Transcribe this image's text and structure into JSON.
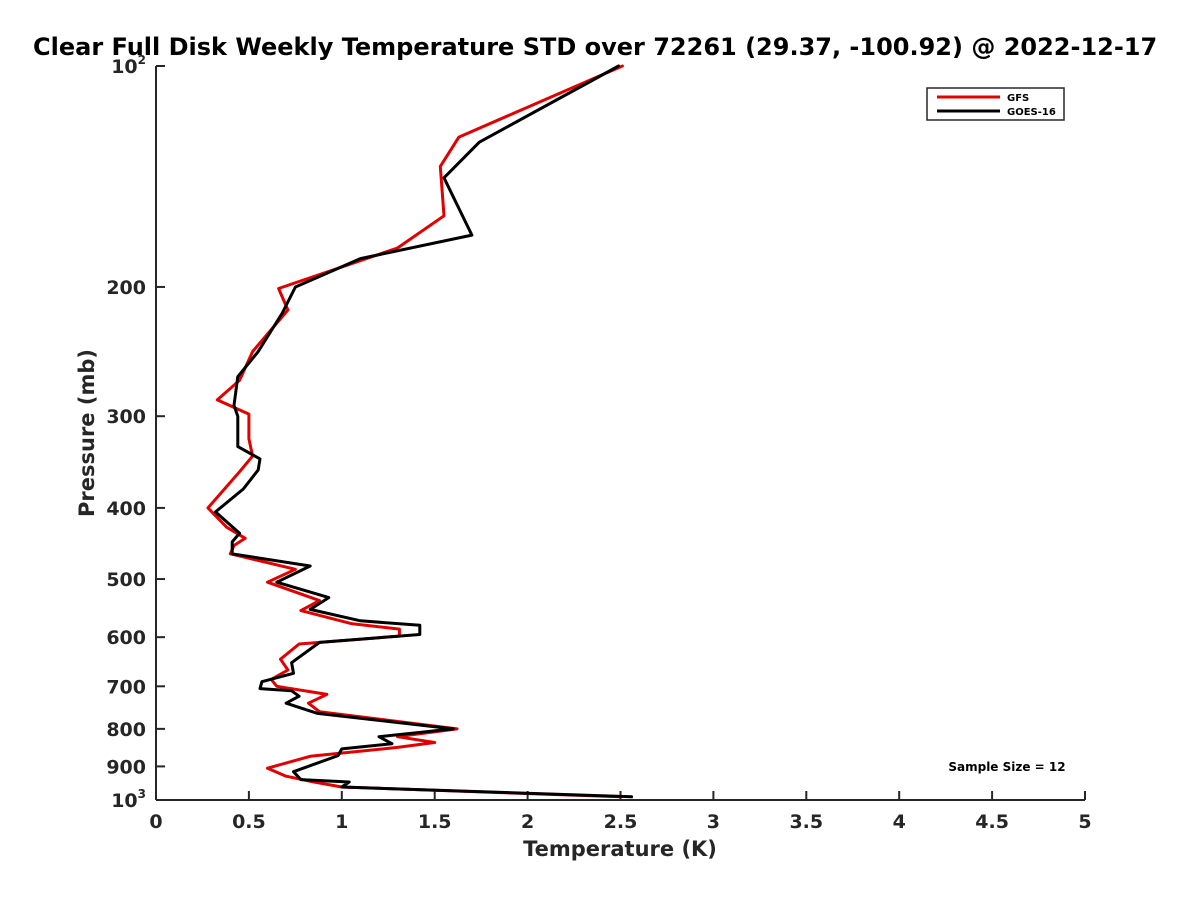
{
  "chart_data": {
    "type": "line",
    "title": "Clear Full Disk Weekly Temperature STD over 72261 (29.37, -100.92) @ 2022-12-17",
    "xlabel": "Temperature (K)",
    "ylabel": "Pressure (mb)",
    "xlim": [
      0,
      5
    ],
    "ylim": [
      100,
      1000
    ],
    "y_scale": "log",
    "y_reversed": true,
    "grid": false,
    "legend_position": "top-right",
    "x_ticks": [
      0,
      0.5,
      1,
      1.5,
      2,
      2.5,
      3,
      3.5,
      4,
      4.5,
      5
    ],
    "x_tick_labels": [
      "0",
      "0.5",
      "1",
      "1.5",
      "2",
      "2.5",
      "3",
      "3.5",
      "4",
      "4.5",
      "5"
    ],
    "y_ticks": [
      100,
      200,
      300,
      400,
      500,
      600,
      700,
      800,
      900,
      1000
    ],
    "y_tick_labels": [
      {
        "base": "10",
        "exp": "2"
      },
      {
        "base": "200",
        "exp": ""
      },
      {
        "base": "300",
        "exp": ""
      },
      {
        "base": "400",
        "exp": ""
      },
      {
        "base": "500",
        "exp": ""
      },
      {
        "base": "600",
        "exp": ""
      },
      {
        "base": "700",
        "exp": ""
      },
      {
        "base": "800",
        "exp": ""
      },
      {
        "base": "900",
        "exp": ""
      },
      {
        "base": "10",
        "exp": "3"
      }
    ],
    "annotation": "Sample Size = 12",
    "series": [
      {
        "name": "GFS",
        "color": "#e00000",
        "points": [
          [
            2.51,
            100
          ],
          [
            1.63,
            125
          ],
          [
            1.53,
            137
          ],
          [
            1.55,
            160
          ],
          [
            1.3,
            177
          ],
          [
            0.66,
            201
          ],
          [
            0.71,
            215
          ],
          [
            0.52,
            245
          ],
          [
            0.45,
            268
          ],
          [
            0.33,
            285
          ],
          [
            0.5,
            298
          ],
          [
            0.5,
            322
          ],
          [
            0.52,
            340
          ],
          [
            0.45,
            357
          ],
          [
            0.28,
            400
          ],
          [
            0.38,
            425
          ],
          [
            0.48,
            440
          ],
          [
            0.42,
            450
          ],
          [
            0.4,
            462
          ],
          [
            0.75,
            485
          ],
          [
            0.6,
            505
          ],
          [
            0.88,
            535
          ],
          [
            0.78,
            552
          ],
          [
            1.05,
            575
          ],
          [
            1.31,
            585
          ],
          [
            1.31,
            598
          ],
          [
            0.77,
            613
          ],
          [
            0.67,
            643
          ],
          [
            0.71,
            665
          ],
          [
            0.62,
            685
          ],
          [
            0.65,
            700
          ],
          [
            0.92,
            718
          ],
          [
            0.82,
            738
          ],
          [
            0.88,
            758
          ],
          [
            1.62,
            800
          ],
          [
            1.3,
            820
          ],
          [
            1.5,
            835
          ],
          [
            1.3,
            848
          ],
          [
            0.83,
            872
          ],
          [
            0.6,
            905
          ],
          [
            0.7,
            928
          ],
          [
            0.85,
            945
          ],
          [
            1.0,
            960
          ],
          [
            2.5,
            990
          ]
        ]
      },
      {
        "name": "GOES-16",
        "color": "#000000",
        "points": [
          [
            2.49,
            100
          ],
          [
            1.74,
            127
          ],
          [
            1.55,
            142
          ],
          [
            1.7,
            170
          ],
          [
            1.1,
            183
          ],
          [
            0.75,
            200
          ],
          [
            0.68,
            217
          ],
          [
            0.55,
            245
          ],
          [
            0.44,
            265
          ],
          [
            0.42,
            290
          ],
          [
            0.44,
            300
          ],
          [
            0.44,
            330
          ],
          [
            0.56,
            343
          ],
          [
            0.55,
            355
          ],
          [
            0.47,
            377
          ],
          [
            0.32,
            405
          ],
          [
            0.45,
            433
          ],
          [
            0.41,
            445
          ],
          [
            0.41,
            462
          ],
          [
            0.83,
            480
          ],
          [
            0.65,
            505
          ],
          [
            0.93,
            530
          ],
          [
            0.83,
            550
          ],
          [
            1.1,
            570
          ],
          [
            1.42,
            578
          ],
          [
            1.42,
            595
          ],
          [
            0.88,
            610
          ],
          [
            0.73,
            650
          ],
          [
            0.74,
            672
          ],
          [
            0.57,
            690
          ],
          [
            0.56,
            705
          ],
          [
            0.73,
            710
          ],
          [
            0.77,
            722
          ],
          [
            0.7,
            738
          ],
          [
            0.87,
            762
          ],
          [
            1.6,
            800
          ],
          [
            1.2,
            820
          ],
          [
            1.27,
            838
          ],
          [
            1.0,
            852
          ],
          [
            0.98,
            870
          ],
          [
            0.74,
            915
          ],
          [
            0.78,
            938
          ],
          [
            1.04,
            945
          ],
          [
            1.0,
            960
          ],
          [
            2.56,
            990
          ]
        ]
      }
    ]
  }
}
